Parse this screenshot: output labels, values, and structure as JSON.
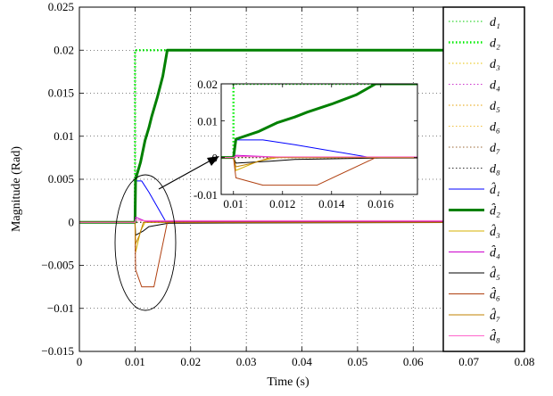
{
  "chart_data": [
    {
      "type": "line",
      "xlabel": "Time (s)",
      "ylabel": "Magnitude (Rad)",
      "xlim": [
        0,
        0.08
      ],
      "ylim": [
        -0.015,
        0.025
      ],
      "xticks": [
        0,
        0.01,
        0.02,
        0.03,
        0.04,
        0.05,
        0.06,
        0.07,
        0.08
      ],
      "xtick_labels": [
        "0",
        "0.01",
        "0.02",
        "0.03",
        "0.04",
        "0.05",
        "0.06",
        "0.07",
        "0.08"
      ],
      "yticks": [
        -0.015,
        -0.01,
        -0.005,
        0,
        0.005,
        0.01,
        0.015,
        0.02,
        0.025
      ],
      "ytick_labels": [
        "−0.015",
        "−0.01",
        "−0.005",
        "0",
        "0.005",
        "0.01",
        "0.015",
        "0.02",
        "0.025"
      ],
      "grid": true,
      "legend_position": "right",
      "series": [
        {
          "name": "d1",
          "latex": "d₁",
          "color": "#00cc00",
          "style": "dotted",
          "width": 1,
          "x": [
            0,
            0.01,
            0.01,
            0.08
          ],
          "y": [
            0,
            0,
            0,
            0
          ]
        },
        {
          "name": "d2",
          "latex": "d₂",
          "color": "#00ee00",
          "style": "dotted",
          "width": 2.5,
          "x": [
            0,
            0.01,
            0.01,
            0.08
          ],
          "y": [
            0,
            0,
            0.02,
            0.02
          ]
        },
        {
          "name": "d3",
          "latex": "d₃",
          "color": "#e6c000",
          "style": "dotted",
          "width": 1,
          "x": [
            0,
            0.08
          ],
          "y": [
            0,
            0
          ]
        },
        {
          "name": "d4",
          "latex": "d₄",
          "color": "#cc33cc",
          "style": "dotted",
          "width": 1,
          "x": [
            0,
            0.08
          ],
          "y": [
            0,
            0
          ]
        },
        {
          "name": "d5",
          "latex": "d₅",
          "color": "#e6a000",
          "style": "dotted",
          "width": 1,
          "x": [
            0,
            0.08
          ],
          "y": [
            0,
            0
          ]
        },
        {
          "name": "d6",
          "latex": "d₆",
          "color": "#f0c040",
          "style": "dotted",
          "width": 1,
          "x": [
            0,
            0.08
          ],
          "y": [
            0,
            0
          ]
        },
        {
          "name": "d7",
          "latex": "d₇",
          "color": "#996633",
          "style": "dotted",
          "width": 1,
          "x": [
            0,
            0.08
          ],
          "y": [
            0,
            0
          ]
        },
        {
          "name": "d8",
          "latex": "d₈",
          "color": "#333333",
          "style": "dotted",
          "width": 1,
          "x": [
            0,
            0.08
          ],
          "y": [
            0,
            0
          ]
        },
        {
          "name": "d1_hat",
          "latex": "d̂₁",
          "color": "#0000ff",
          "style": "solid",
          "width": 1,
          "x": [
            0,
            0.01,
            0.0101,
            0.0112,
            0.0125,
            0.0155,
            0.08
          ],
          "y": [
            0,
            0,
            0.0048,
            0.0048,
            0.0035,
            0.0001,
            0
          ]
        },
        {
          "name": "d2_hat",
          "latex": "d̂₂",
          "color": "#008000",
          "style": "solid",
          "width": 3,
          "x": [
            0,
            0.01,
            0.0101,
            0.011,
            0.0118,
            0.0125,
            0.013,
            0.014,
            0.015,
            0.0158,
            0.08
          ],
          "y": [
            0,
            0,
            0.005,
            0.007,
            0.0095,
            0.011,
            0.0123,
            0.0145,
            0.017,
            0.02,
            0.02
          ]
        },
        {
          "name": "d3_hat",
          "latex": "d̂₃",
          "color": "#d4b000",
          "style": "solid",
          "width": 1,
          "x": [
            0,
            0.01,
            0.0101,
            0.011,
            0.0118,
            0.08
          ],
          "y": [
            0,
            0,
            -0.0035,
            -0.001,
            0,
            0
          ]
        },
        {
          "name": "d4_hat",
          "latex": "d̂₄",
          "color": "#cc00cc",
          "style": "solid",
          "width": 1,
          "x": [
            0,
            0.01,
            0.0101,
            0.0108,
            0.012,
            0.08
          ],
          "y": [
            0,
            0,
            0.0006,
            0.0004,
            0.0001,
            0.0001
          ]
        },
        {
          "name": "d5_hat",
          "latex": "d̂₅",
          "color": "#000000",
          "style": "solid",
          "width": 1,
          "x": [
            0,
            0.01,
            0.0101,
            0.0115,
            0.0125,
            0.016,
            0.08
          ],
          "y": [
            0,
            0,
            -0.0015,
            -0.001,
            -0.0005,
            -0.0001,
            0
          ]
        },
        {
          "name": "d6_hat",
          "latex": "d̂₆",
          "color": "#b04010",
          "style": "solid",
          "width": 1,
          "x": [
            0,
            0.01,
            0.0101,
            0.0112,
            0.0125,
            0.0134,
            0.0158,
            0.08
          ],
          "y": [
            0,
            0,
            -0.0055,
            -0.0075,
            -0.0075,
            -0.0075,
            0,
            0
          ]
        },
        {
          "name": "d7_hat",
          "latex": "d̂₇",
          "color": "#c08000",
          "style": "solid",
          "width": 1,
          "x": [
            0,
            0.01,
            0.0101,
            0.0108,
            0.0115,
            0.08
          ],
          "y": [
            0,
            0,
            -0.0025,
            -0.0015,
            0,
            0
          ]
        },
        {
          "name": "d8_hat",
          "latex": "d̂₈",
          "color": "#ff66cc",
          "style": "solid",
          "width": 1,
          "x": [
            0,
            0.01,
            0.0101,
            0.0112,
            0.08
          ],
          "y": [
            0,
            0,
            0.0003,
            0.0002,
            0.0002
          ]
        }
      ]
    },
    {
      "type": "line",
      "role": "inset",
      "xlim": [
        0.0095,
        0.0175
      ],
      "ylim": [
        -0.01,
        0.02
      ],
      "xticks": [
        0.01,
        0.012,
        0.014,
        0.016
      ],
      "xtick_labels": [
        "0.01",
        "0.012",
        "0.014",
        "0.016"
      ],
      "yticks": [
        -0.01,
        0,
        0.01,
        0.02
      ],
      "ytick_labels": [
        "-0.01",
        "0",
        "0.01",
        "0.02"
      ],
      "grid": false,
      "series_ref": "same as main chart (zoomed view)"
    }
  ]
}
